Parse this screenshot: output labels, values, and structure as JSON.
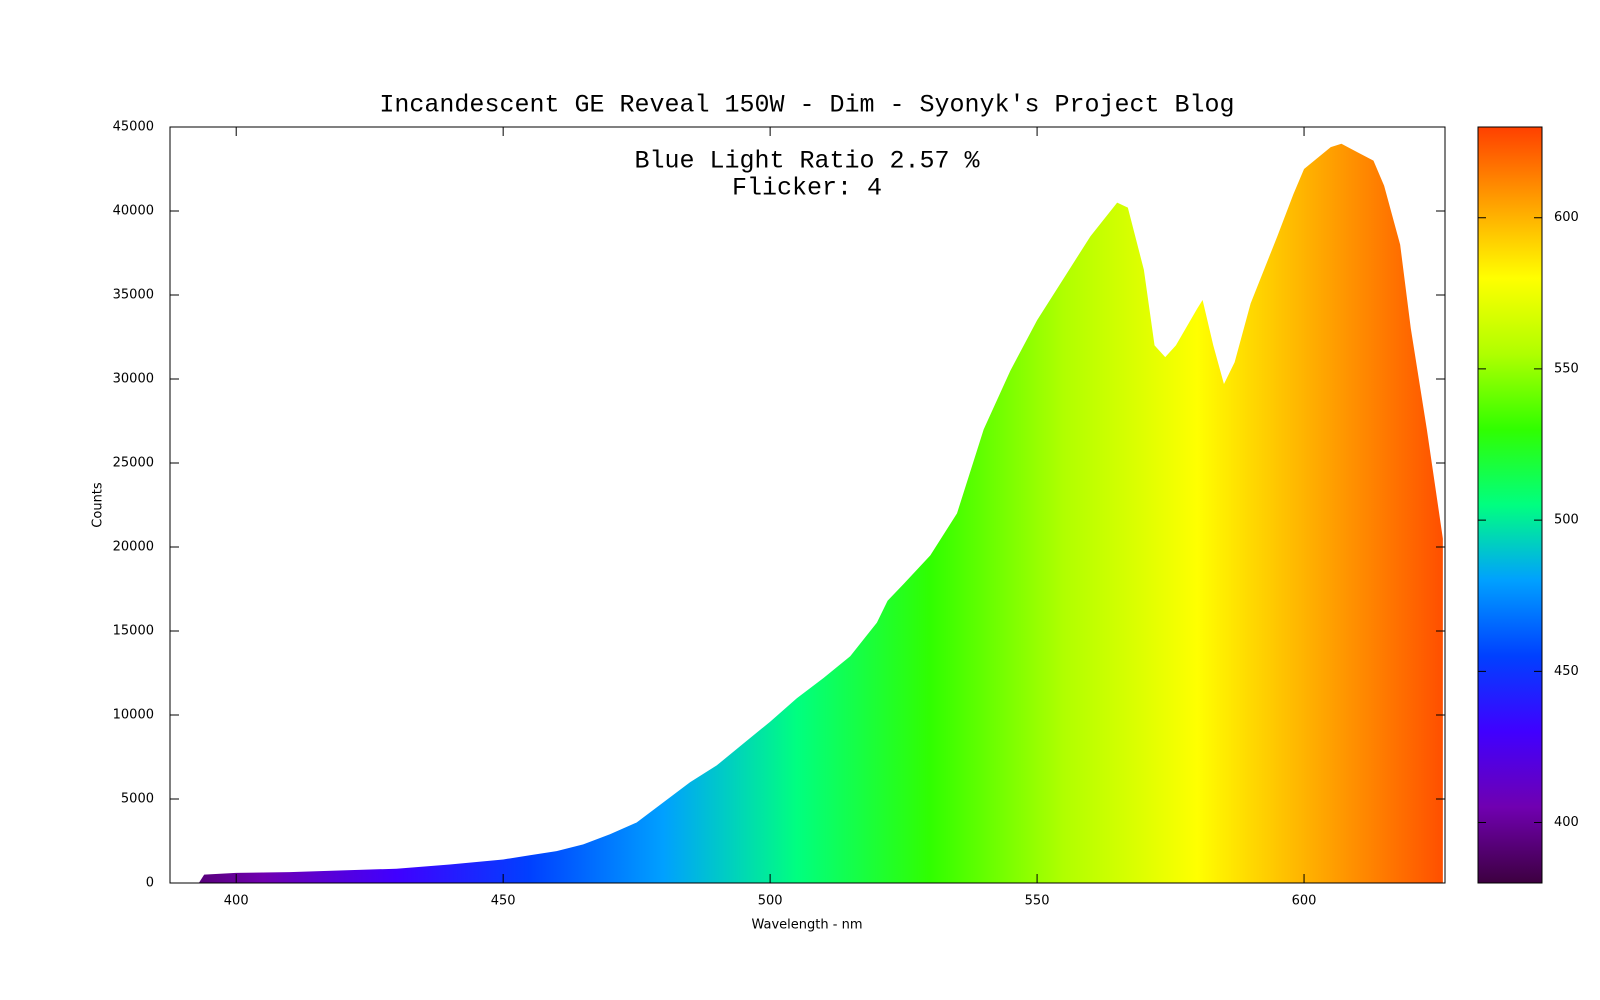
{
  "chart_data": {
    "type": "area",
    "title": "Incandescent GE Reveal 150W - Dim - Syonyk's Project Blog",
    "annotations": [
      "Blue Light Ratio 2.57 %",
      "Flicker: 4"
    ],
    "x_label": "Wavelength - nm",
    "y_label": "Counts",
    "x": [
      388,
      390,
      393,
      394,
      400,
      410,
      420,
      430,
      440,
      450,
      455,
      460,
      465,
      470,
      475,
      480,
      485,
      490,
      495,
      500,
      505,
      510,
      515,
      520,
      522,
      525,
      530,
      535,
      540,
      545,
      550,
      555,
      560,
      565,
      567,
      570,
      572,
      574,
      576,
      580,
      581,
      583,
      585,
      587,
      590,
      595,
      598,
      600,
      605,
      607,
      610,
      613,
      615,
      618,
      620,
      623,
      626
    ],
    "values": [
      0,
      0,
      0,
      500,
      600,
      650,
      750,
      850,
      1100,
      1400,
      1650,
      1900,
      2300,
      2900,
      3600,
      4800,
      6000,
      7000,
      8300,
      9600,
      11000,
      12200,
      13500,
      15500,
      16800,
      17800,
      19500,
      22000,
      27000,
      30500,
      33500,
      36000,
      38500,
      40500,
      40200,
      36500,
      32000,
      31300,
      32000,
      34200,
      34700,
      32000,
      29700,
      31000,
      34500,
      38500,
      41000,
      42500,
      43800,
      44000,
      43500,
      43000,
      41500,
      38000,
      33000,
      27000,
      20500
    ],
    "xlim": [
      387.6,
      626.4
    ],
    "ylim": [
      0,
      45000
    ],
    "xticks": [
      400,
      450,
      500,
      550,
      600
    ],
    "yticks": [
      0,
      5000,
      10000,
      15000,
      20000,
      25000,
      30000,
      35000,
      40000,
      45000
    ],
    "colorbar": {
      "lim": [
        380,
        630
      ],
      "ticks": [
        400,
        450,
        500,
        550,
        600
      ],
      "colors": [
        "#3d0040",
        "#7000b0",
        "#4000ff",
        "#0040ff",
        "#00a0ff",
        "#00ff80",
        "#30ff00",
        "#b0ff00",
        "#ffff00",
        "#ffa000",
        "#ff4000"
      ]
    }
  }
}
